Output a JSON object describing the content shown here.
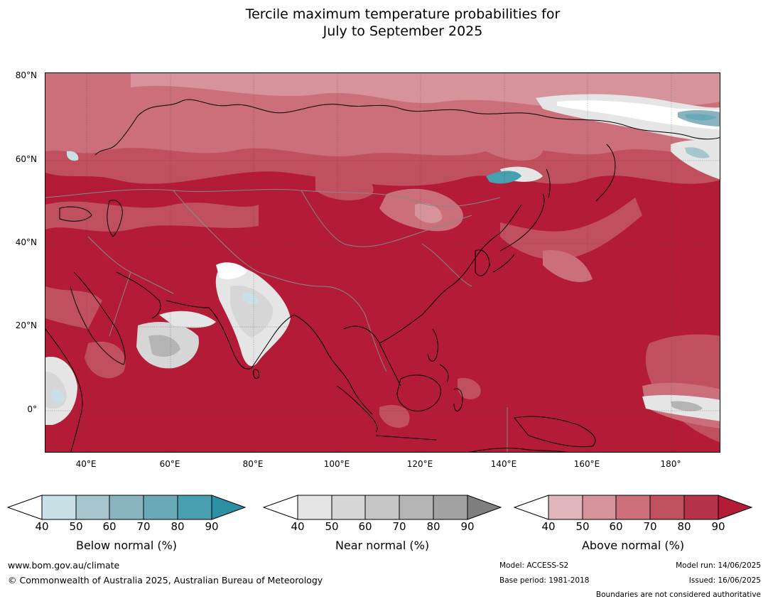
{
  "title": {
    "line1": "Tercile maximum temperature probabilities for",
    "line2": "July to September 2025"
  },
  "map": {
    "lat_labels": [
      "80°N",
      "60°N",
      "40°N",
      "20°N",
      "0°"
    ],
    "lon_labels": [
      "40°E",
      "60°E",
      "80°E",
      "100°E",
      "120°E",
      "140°E",
      "160°E",
      "180°"
    ],
    "background_color": "#b31b36"
  },
  "legends": [
    {
      "label": "Below normal (%)",
      "ticks": [
        "40",
        "50",
        "60",
        "70",
        "80",
        "90"
      ],
      "colors": [
        "#c9e1e6",
        "#a6c5cc",
        "#88b3bf",
        "#6aa9b7",
        "#479fb0",
        "#2d8fa3"
      ]
    },
    {
      "label": "Near normal (%)",
      "ticks": [
        "40",
        "50",
        "60",
        "70",
        "80",
        "90"
      ],
      "colors": [
        "#e5e5e5",
        "#d6d6d6",
        "#c6c6c6",
        "#b4b4b4",
        "#a2a2a2",
        "#7f7f7f"
      ]
    },
    {
      "label": "Above normal (%)",
      "ticks": [
        "40",
        "50",
        "60",
        "70",
        "80",
        "90"
      ],
      "colors": [
        "#e0b6bc",
        "#d6939c",
        "#cb6f7a",
        "#c0505e",
        "#b6344a",
        "#b31b36"
      ]
    }
  ],
  "footer": {
    "website": "www.bom.gov.au/climate",
    "copyright": "© Commonwealth of Australia 2025, Australian Bureau of Meteorology",
    "model": "Model: ACCESS-S2",
    "base_period": "Base period: 1981-2018",
    "model_run": "Model run: 14/06/2025",
    "issued": "Issued: 16/06/2025",
    "disclaimer": "Boundaries are not considered authoritative"
  }
}
